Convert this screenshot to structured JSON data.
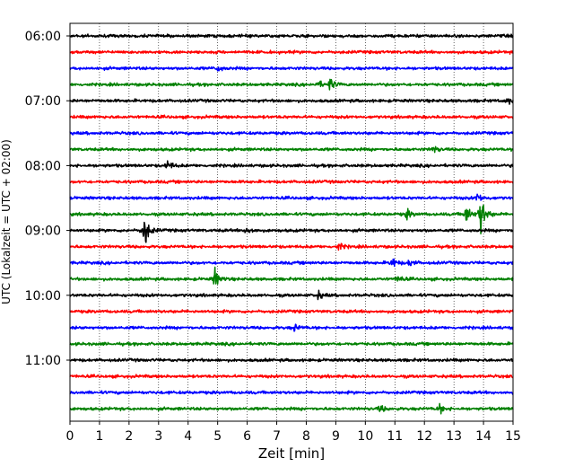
{
  "chart_data": {
    "type": "line",
    "title": "",
    "xlabel": "Zeit  [min]",
    "ylabel": "UTC (Lokalzeit = UTC + 02:00)",
    "xlim": [
      0,
      15
    ],
    "x_ticks": [
      "0",
      "1",
      "2",
      "3",
      "4",
      "5",
      "6",
      "7",
      "8",
      "9",
      "10",
      "11",
      "12",
      "13",
      "14",
      "15"
    ],
    "y_ticks": [
      "06:00",
      "07:00",
      "08:00",
      "09:00",
      "10:00",
      "11:00"
    ],
    "grid": "vertical dotted",
    "trace_interval_min": 15,
    "colors": [
      "#000000",
      "#ff0000",
      "#0000ff",
      "#008000"
    ],
    "series": [
      {
        "start": "06:00",
        "color": "#000000",
        "events": []
      },
      {
        "start": "06:15",
        "color": "#ff0000",
        "events": []
      },
      {
        "start": "06:30",
        "color": "#0000ff",
        "events": [
          {
            "t": 5.0,
            "amp": 3
          }
        ]
      },
      {
        "start": "06:45",
        "color": "#008000",
        "events": [
          {
            "t": 8.8,
            "amp": 5
          },
          {
            "t": 8.4,
            "amp": 3
          }
        ]
      },
      {
        "start": "07:00",
        "color": "#000000",
        "events": [
          {
            "t": 14.8,
            "amp": 3
          }
        ]
      },
      {
        "start": "07:15",
        "color": "#ff0000",
        "events": []
      },
      {
        "start": "07:30",
        "color": "#0000ff",
        "events": []
      },
      {
        "start": "07:45",
        "color": "#008000",
        "events": [
          {
            "t": 12.3,
            "amp": 3
          }
        ]
      },
      {
        "start": "08:00",
        "color": "#000000",
        "events": [
          {
            "t": 3.3,
            "amp": 4
          }
        ]
      },
      {
        "start": "08:15",
        "color": "#ff0000",
        "events": []
      },
      {
        "start": "08:30",
        "color": "#0000ff",
        "events": [
          {
            "t": 13.8,
            "amp": 4
          }
        ]
      },
      {
        "start": "08:45",
        "color": "#008000",
        "events": [
          {
            "t": 13.9,
            "amp": 18
          },
          {
            "t": 13.4,
            "amp": 8
          },
          {
            "t": 11.4,
            "amp": 4
          }
        ]
      },
      {
        "start": "09:00",
        "color": "#000000",
        "events": [
          {
            "t": 2.5,
            "amp": 16
          },
          {
            "t": 6.0,
            "amp": 4
          }
        ]
      },
      {
        "start": "09:15",
        "color": "#ff0000",
        "events": [
          {
            "t": 9.1,
            "amp": 3
          }
        ]
      },
      {
        "start": "09:30",
        "color": "#0000ff",
        "events": [
          {
            "t": 10.9,
            "amp": 5
          },
          {
            "t": 11.5,
            "amp": 3
          }
        ]
      },
      {
        "start": "09:45",
        "color": "#008000",
        "events": [
          {
            "t": 4.9,
            "amp": 8
          },
          {
            "t": 11.1,
            "amp": 3
          }
        ]
      },
      {
        "start": "10:00",
        "color": "#000000",
        "events": [
          {
            "t": 8.4,
            "amp": 3
          }
        ]
      },
      {
        "start": "10:15",
        "color": "#ff0000",
        "events": []
      },
      {
        "start": "10:30",
        "color": "#0000ff",
        "events": [
          {
            "t": 7.6,
            "amp": 3
          }
        ]
      },
      {
        "start": "10:45",
        "color": "#008000",
        "events": []
      },
      {
        "start": "11:00",
        "color": "#000000",
        "events": []
      },
      {
        "start": "11:15",
        "color": "#ff0000",
        "events": []
      },
      {
        "start": "11:30",
        "color": "#0000ff",
        "events": []
      },
      {
        "start": "11:45",
        "color": "#008000",
        "events": [
          {
            "t": 12.5,
            "amp": 4
          },
          {
            "t": 10.5,
            "amp": 3
          }
        ]
      }
    ]
  }
}
